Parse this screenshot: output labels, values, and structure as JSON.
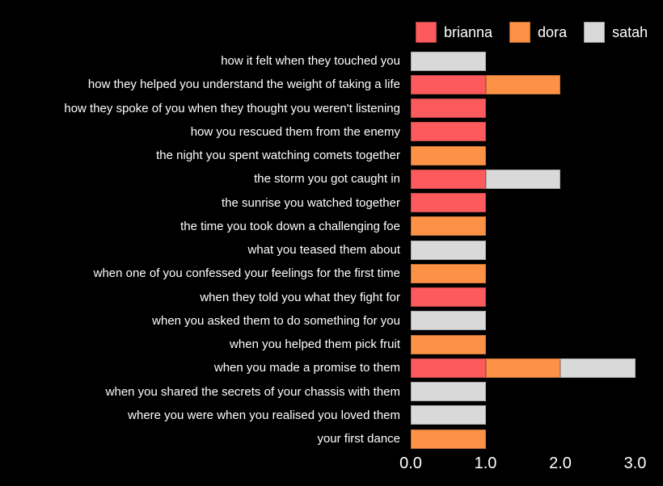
{
  "chart_data": {
    "type": "bar",
    "orientation": "horizontal",
    "stacked": true,
    "title": "",
    "xlabel": "",
    "ylabel": "",
    "xlim": [
      0,
      3
    ],
    "grid": false,
    "legend_position": "top-right",
    "background_color": "#000000",
    "text_color": "#ffffff",
    "categories": [
      "how it felt when they touched you",
      "how they helped you understand the weight of taking a life",
      "how they spoke of you when they thought you weren't listening",
      "how you rescued them from the enemy",
      "the night you spent watching comets together",
      "the storm you got caught in",
      "the sunrise you watched together",
      "the time you took down a challenging foe",
      "what you teased them about",
      "when one of you confessed your feelings for the first time",
      "when they told you what they fight for",
      "when you asked them to do something for you",
      "when you helped them pick fruit",
      "when you made a promise to them",
      "when you shared the secrets of your chassis with them",
      "where you were when you realised you loved them",
      "your first dance"
    ],
    "series": [
      {
        "name": "brianna",
        "color": "#fc5a5d",
        "values": [
          0,
          1,
          1,
          1,
          0,
          1,
          1,
          0,
          0,
          0,
          1,
          0,
          0,
          1,
          0,
          0,
          0
        ]
      },
      {
        "name": "dora",
        "color": "#fd9246",
        "values": [
          0,
          1,
          0,
          0,
          1,
          0,
          0,
          1,
          0,
          1,
          0,
          0,
          1,
          1,
          0,
          0,
          1
        ]
      },
      {
        "name": "satah",
        "color": "#d9d9d9",
        "values": [
          1,
          0,
          0,
          0,
          0,
          1,
          0,
          0,
          1,
          0,
          0,
          1,
          0,
          1,
          1,
          1,
          0
        ]
      }
    ],
    "xticks": [
      {
        "value": 0,
        "label": "0.0"
      },
      {
        "value": 1,
        "label": "1.0"
      },
      {
        "value": 2,
        "label": "2.0"
      },
      {
        "value": 3,
        "label": "3.0"
      }
    ]
  }
}
